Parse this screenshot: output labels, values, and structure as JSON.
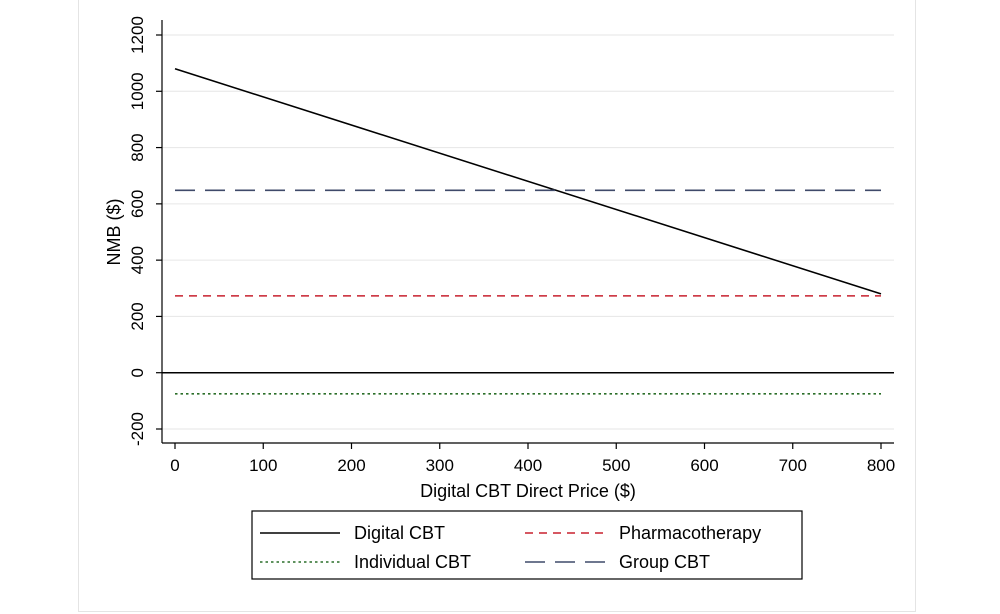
{
  "chart_data": {
    "type": "line",
    "xlabel": "Digital CBT Direct Price ($)",
    "ylabel": "NMB ($)",
    "xlim": [
      0,
      800
    ],
    "ylim": [
      -200,
      1200
    ],
    "x_ticks": [
      0,
      100,
      200,
      300,
      400,
      500,
      600,
      700,
      800
    ],
    "y_ticks": [
      -200,
      0,
      200,
      400,
      600,
      800,
      1000,
      1200
    ],
    "grid": true,
    "zero_line": true,
    "legend_position": "bottom",
    "series": [
      {
        "name": "Digital CBT",
        "x": [
          0,
          800
        ],
        "y": [
          1080,
          280
        ],
        "color": "#000000",
        "dash": "solid"
      },
      {
        "name": "Pharmacotherapy",
        "x": [
          0,
          800
        ],
        "y": [
          273,
          273
        ],
        "color": "#c8202e",
        "dash": "short-dash"
      },
      {
        "name": "Individual CBT",
        "x": [
          0,
          800
        ],
        "y": [
          -75,
          -75
        ],
        "color": "#2a6e28",
        "dash": "dot"
      },
      {
        "name": "Group CBT",
        "x": [
          0,
          800
        ],
        "y": [
          648,
          648
        ],
        "color": "#3f4a6a",
        "dash": "long-dash"
      }
    ]
  }
}
